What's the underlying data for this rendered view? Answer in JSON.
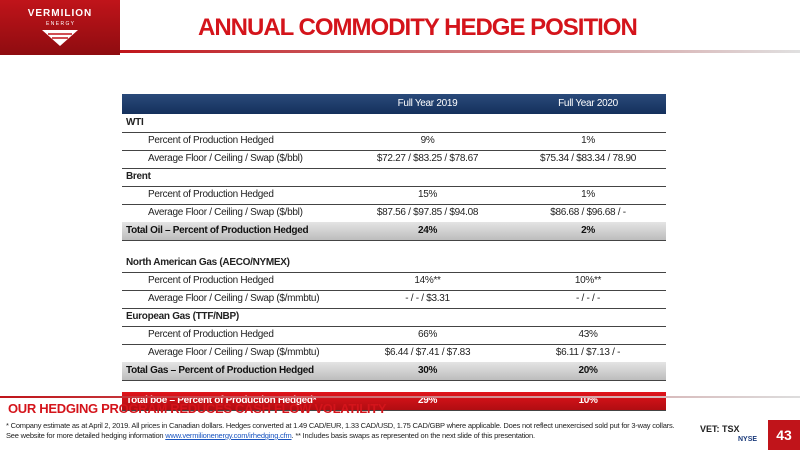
{
  "header": {
    "logo": {
      "name": "VERMILION",
      "sub": "E N E R G Y"
    },
    "title": "ANNUAL COMMODITY HEDGE POSITION"
  },
  "table": {
    "columns": [
      "Full Year 2019",
      "Full Year 2020"
    ],
    "blocks": [
      {
        "groups": [
          {
            "label": "WTI",
            "rows": [
              {
                "label": "Percent of Production Hedged",
                "values": [
                  "9%",
                  "1%"
                ]
              },
              {
                "label": "Average Floor / Ceiling / Swap ($/bbl)",
                "values": [
                  "$72.27 / $83.25 / $78.67",
                  "$75.34 / $83.34 / 78.90"
                ]
              }
            ]
          },
          {
            "label": "Brent",
            "rows": [
              {
                "label": "Percent of Production Hedged",
                "values": [
                  "15%",
                  "1%"
                ]
              },
              {
                "label": "Average Floor / Ceiling / Swap ($/bbl)",
                "values": [
                  "$87.56 / $97.85 / $94.08",
                  "$86.68 / $96.68 / -"
                ]
              }
            ]
          }
        ],
        "total": {
          "label": "Total Oil – Percent of Production Hedged",
          "values": [
            "24%",
            "2%"
          ]
        }
      },
      {
        "groups": [
          {
            "label": "North American Gas (AECO/NYMEX)",
            "rows": [
              {
                "label": "Percent of Production Hedged",
                "values": [
                  "14%**",
                  "10%**"
                ]
              },
              {
                "label": "Average Floor / Ceiling / Swap ($/mmbtu)",
                "values": [
                  "- / - / $3.31",
                  "- / - / -"
                ]
              }
            ]
          },
          {
            "label": "European Gas (TTF/NBP)",
            "rows": [
              {
                "label": "Percent of Production Hedged",
                "values": [
                  "66%",
                  "43%"
                ]
              },
              {
                "label": "Average Floor / Ceiling / Swap ($/mmbtu)",
                "values": [
                  "$6.44 / $7.41 / $7.83",
                  "$6.11 / $7.13 / -"
                ]
              }
            ]
          }
        ],
        "total": {
          "label": "Total Gas – Percent of Production Hedged",
          "values": [
            "30%",
            "20%"
          ]
        }
      }
    ],
    "grand_total": {
      "label": "Total boe – Percent of Production Hedged*",
      "values": [
        "29%",
        "10%"
      ]
    }
  },
  "footer": {
    "subtitle": "OUR HEDGING PROGRAM REDUCES CASH FLOW VOLATILITY",
    "note": "* Company estimate as at April 2, 2019. All prices in Canadian dollars. Hedges converted at 1.49 CAD/EUR, 1.33 CAD/USD, 1.75 CAD/GBP where applicable.  Does not reflect unexercised sold put for 3-way collars.  See website for more detailed hedging information ",
    "link": "www.vermilionenergy.com/irhedging.cfm",
    "note_end": ". ** Includes basis swaps as represented on the next slide of this presentation.",
    "ticker": "VET: TSX",
    "exchange": "NYSE",
    "page": "43"
  }
}
